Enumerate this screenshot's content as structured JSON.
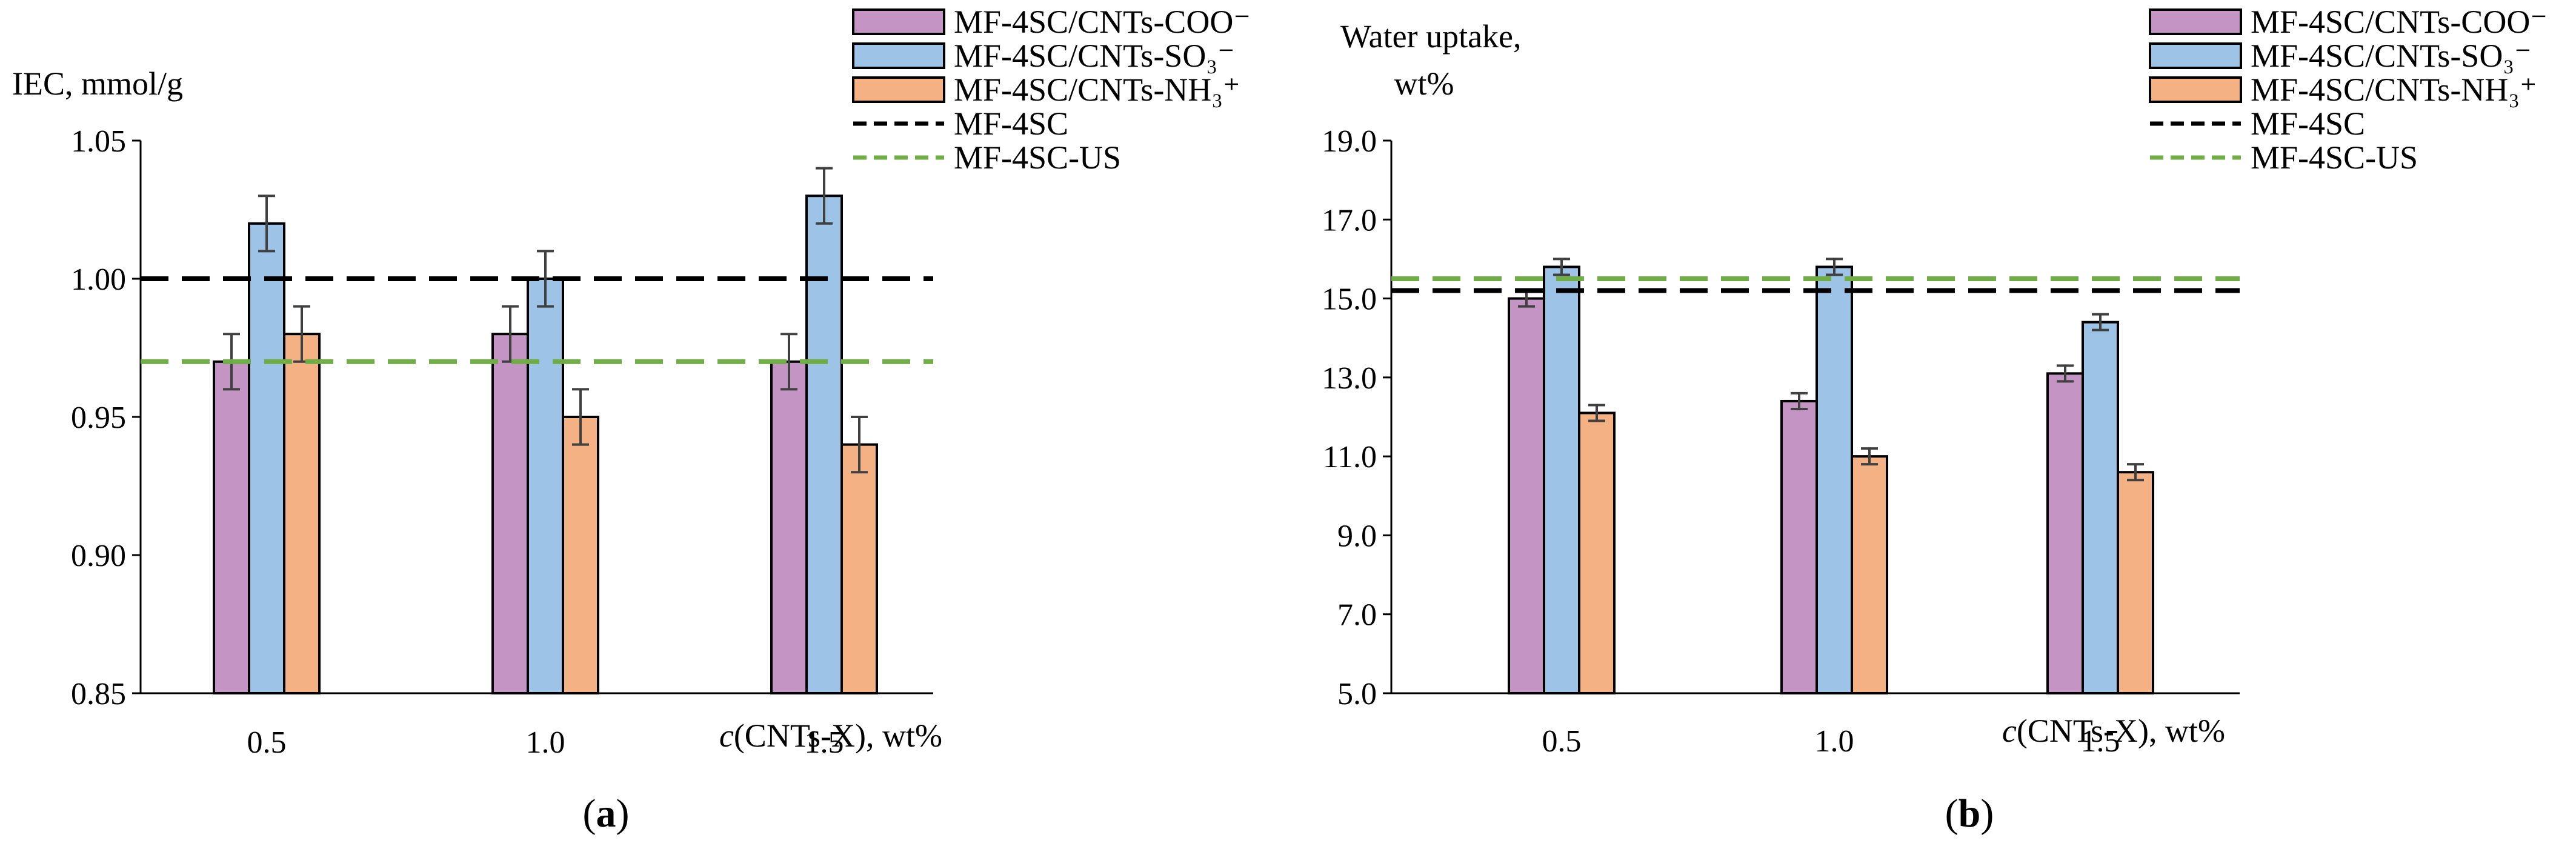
{
  "colors": {
    "coo": "#c394c4",
    "so3": "#9dc3e6",
    "nh3": "#f4b183",
    "mf4sc": "#000000",
    "mf4sc_us": "#70ad47"
  },
  "legend": {
    "coo": "MF-4SC/CNTs-COO⁻",
    "so3": "MF-4SC/CNTs-SO₃⁻",
    "nh3": "MF-4SC/CNTs-NH₃⁺",
    "mf4sc": "MF-4SC",
    "mf4sc_us": "MF-4SC-US"
  },
  "chart_data": [
    {
      "type": "bar",
      "panel": "(a)",
      "panel_letter": "a",
      "ylabel": "IEC, mmol/g",
      "ylabel2": "",
      "xlabel_italic": "c",
      "xlabel_rest": "(CNTs-X), wt%",
      "categories": [
        "0.5",
        "1.0",
        "1.5"
      ],
      "ylim": [
        0.85,
        1.05
      ],
      "ytick_step": 0.05,
      "ytick_decimals": 2,
      "yticks": [
        "0.85",
        "0.90",
        "0.95",
        "1.00",
        "1.05"
      ],
      "series": [
        {
          "key": "coo",
          "name": "MF-4SC/CNTs-COO⁻",
          "values": [
            0.97,
            0.98,
            0.97
          ],
          "errors": [
            0.01,
            0.01,
            0.01
          ]
        },
        {
          "key": "so3",
          "name": "MF-4SC/CNTs-SO₃⁻",
          "values": [
            1.02,
            1.0,
            1.03
          ],
          "errors": [
            0.01,
            0.01,
            0.01
          ]
        },
        {
          "key": "nh3",
          "name": "MF-4SC/CNTs-NH₃⁺",
          "values": [
            0.98,
            0.95,
            0.94
          ],
          "errors": [
            0.01,
            0.01,
            0.01
          ]
        }
      ],
      "reference_lines": [
        {
          "key": "mf4sc",
          "name": "MF-4SC",
          "value": 1.0
        },
        {
          "key": "mf4sc_us",
          "name": "MF-4SC-US",
          "value": 0.97
        }
      ]
    },
    {
      "type": "bar",
      "panel": "(b)",
      "panel_letter": "b",
      "ylabel": "Water uptake,",
      "ylabel2": "wt%",
      "xlabel_italic": "c",
      "xlabel_rest": "(CNTs-X), wt%",
      "categories": [
        "0.5",
        "1.0",
        "1.5"
      ],
      "ylim": [
        5.0,
        19.0
      ],
      "ytick_step": 2.0,
      "ytick_decimals": 1,
      "yticks": [
        "5.0",
        "7.0",
        "9.0",
        "11.0",
        "13.0",
        "15.0",
        "17.0",
        "19.0"
      ],
      "series": [
        {
          "key": "coo",
          "name": "MF-4SC/CNTs-COO⁻",
          "values": [
            15.0,
            12.4,
            13.1
          ],
          "errors": [
            0.2,
            0.2,
            0.2
          ]
        },
        {
          "key": "so3",
          "name": "MF-4SC/CNTs-SO₃⁻",
          "values": [
            15.8,
            15.8,
            14.4
          ],
          "errors": [
            0.2,
            0.2,
            0.2
          ]
        },
        {
          "key": "nh3",
          "name": "MF-4SC/CNTs-NH₃⁺",
          "values": [
            12.1,
            11.0,
            10.6
          ],
          "errors": [
            0.2,
            0.2,
            0.2
          ]
        }
      ],
      "reference_lines": [
        {
          "key": "mf4sc",
          "name": "MF-4SC",
          "value": 15.2
        },
        {
          "key": "mf4sc_us",
          "name": "MF-4SC-US",
          "value": 15.5
        }
      ]
    }
  ]
}
